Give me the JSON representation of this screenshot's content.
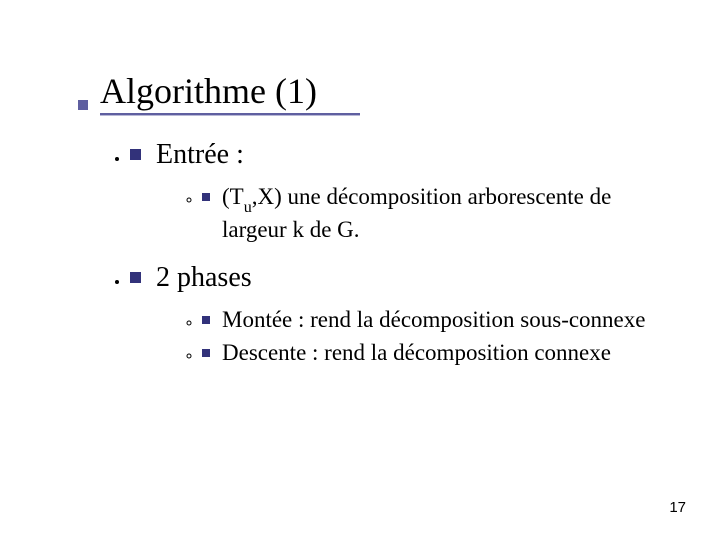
{
  "title": "Algorithme (1)",
  "bullets": {
    "entree": {
      "label": "Entrée :",
      "sub1_prefix": "(T",
      "sub1_sub": "u",
      "sub1_rest": ",X) une décomposition arborescente de largeur k de G."
    },
    "phases": {
      "label": "2 phases",
      "sub1": "Montée : rend la décomposition sous-connexe",
      "sub2": "Descente : rend la décomposition connexe"
    }
  },
  "page_number": "17",
  "colors": {
    "bullet": "#32327a",
    "underline": "#5f5fa0"
  }
}
